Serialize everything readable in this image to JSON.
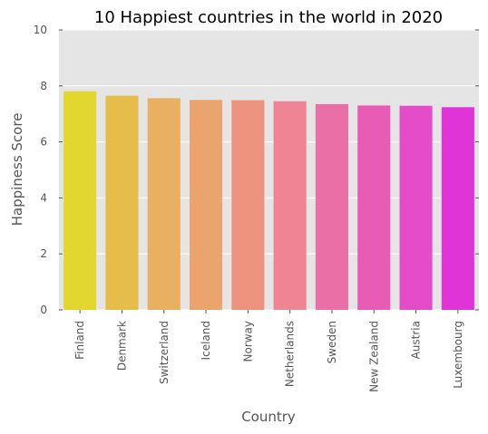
{
  "chart_data": {
    "type": "bar",
    "title": "10 Happiest countries in the world in 2020",
    "xlabel": "Country",
    "ylabel": "Happiness Score",
    "categories": [
      "Finland",
      "Denmark",
      "Switzerland",
      "Iceland",
      "Norway",
      "Netherlands",
      "Sweden",
      "New Zealand",
      "Austria",
      "Luxembourg"
    ],
    "values": [
      7.81,
      7.65,
      7.56,
      7.5,
      7.49,
      7.45,
      7.35,
      7.3,
      7.29,
      7.24
    ],
    "ylim": [
      0,
      10
    ],
    "yticks": [
      0,
      2,
      4,
      6,
      8,
      10
    ],
    "grid": true,
    "background": "#e5e5e5",
    "gridline_color": "#ffffff",
    "colors": [
      "#e2d72e",
      "#e6bc4a",
      "#e9b062",
      "#eba46e",
      "#ee947e",
      "#ee8494",
      "#ea6fa6",
      "#e85cb6",
      "#e44cc8",
      "#e034d8"
    ]
  }
}
